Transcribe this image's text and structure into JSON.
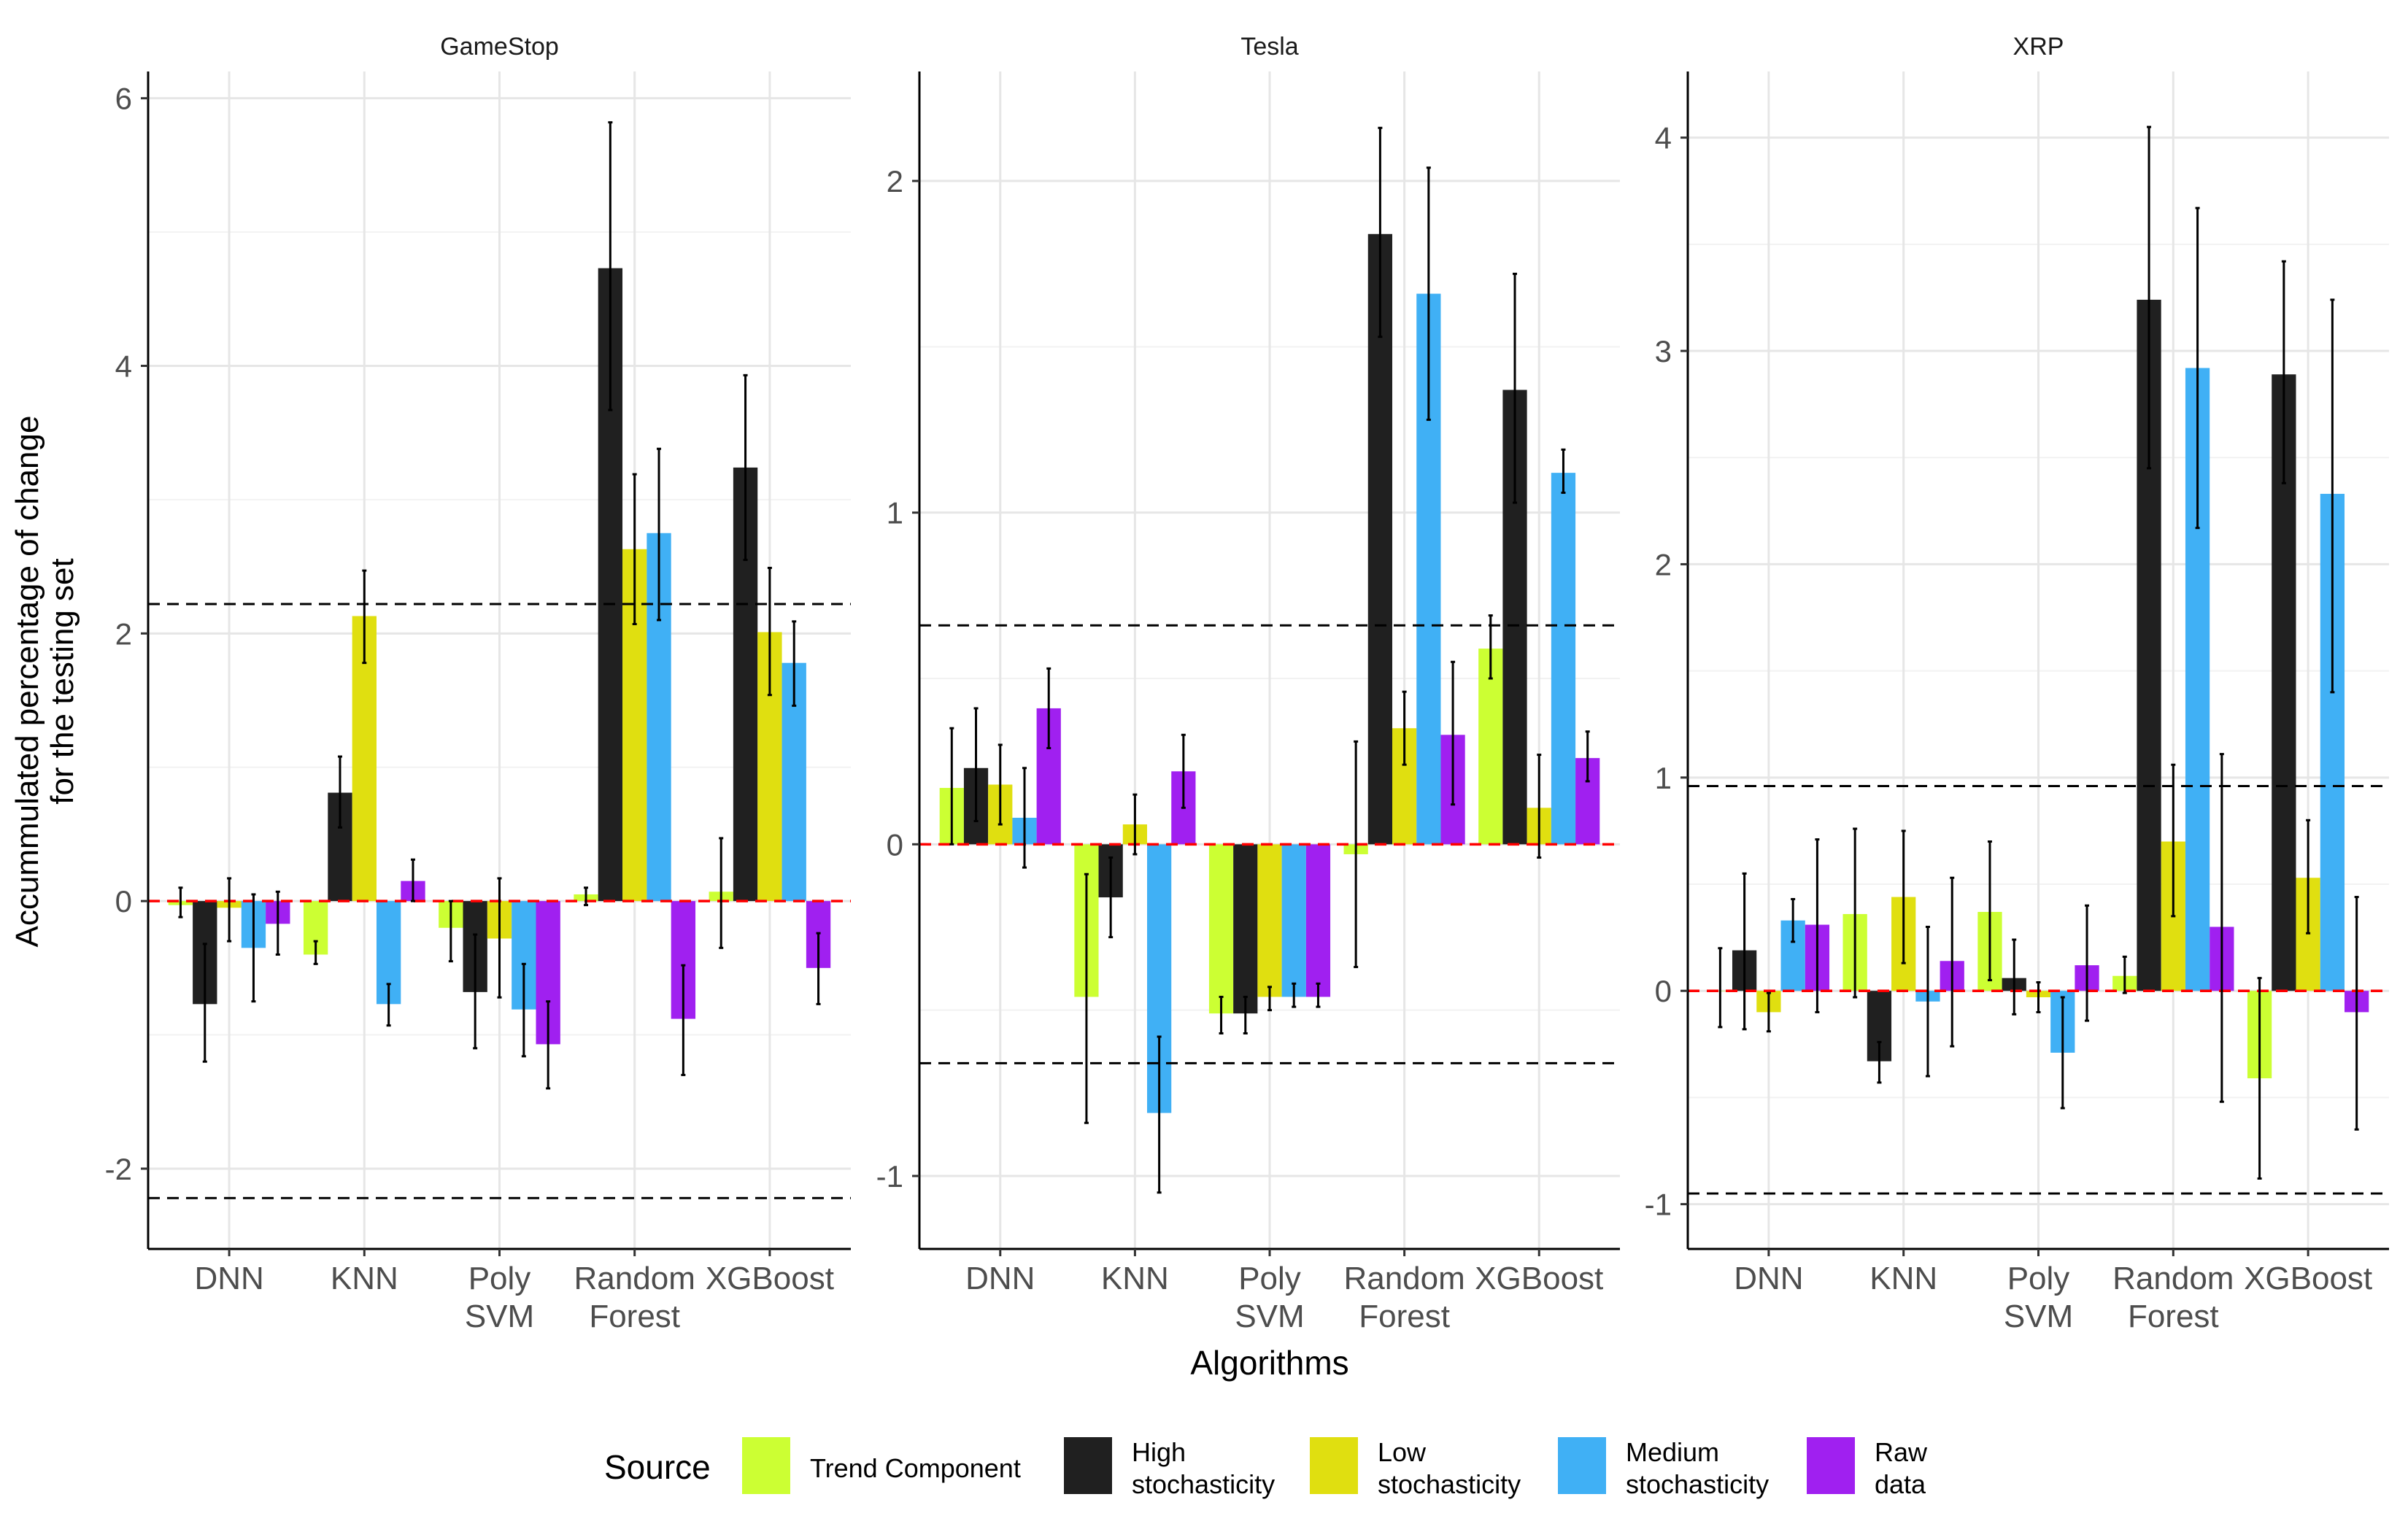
{
  "ylabel_lines": [
    "Accummulated percentage of change",
    "for the testing set"
  ],
  "xlabel": "Algorithms",
  "legend": {
    "title": "Source",
    "items": [
      {
        "label": "Trend Component",
        "lines": [
          "Trend Component"
        ],
        "color": "#CCFF33"
      },
      {
        "label": "High stochasticity",
        "lines": [
          "High",
          "stochasticity"
        ],
        "color": "#202020"
      },
      {
        "label": "Low stochasticity",
        "lines": [
          "Low",
          "stochasticity"
        ],
        "color": "#E0DF10"
      },
      {
        "label": "Medium stochasticity",
        "lines": [
          "Medium",
          "stochasticity"
        ],
        "color": "#40B0F5"
      },
      {
        "label": "Raw data",
        "lines": [
          "Raw",
          "data"
        ],
        "color": "#A020F0"
      }
    ]
  },
  "reference_line_color": "#FF0000",
  "threshold_line_color": "#000000",
  "chart_data": [
    {
      "type": "bar",
      "title": "GameStop",
      "categories": [
        [
          "DNN"
        ],
        [
          "KNN"
        ],
        [
          "Poly",
          "SVM"
        ],
        [
          "Random",
          "Forest"
        ],
        [
          "XGBoost"
        ]
      ],
      "ylim": [
        -2.6,
        6.2
      ],
      "yticks": [
        -2,
        0,
        2,
        4,
        6
      ],
      "tick_labels": [
        "-2",
        "0",
        "2",
        "4",
        "6"
      ],
      "thresholds": [
        2.22,
        -2.22
      ],
      "series": [
        {
          "name": "Trend Component",
          "values": [
            -0.03,
            -0.4,
            -0.2,
            0.05,
            0.07
          ],
          "lower": [
            -0.12,
            -0.47,
            -0.45,
            -0.03,
            -0.35
          ],
          "upper": [
            0.1,
            -0.3,
            0.0,
            0.1,
            0.47
          ]
        },
        {
          "name": "High stochasticity",
          "values": [
            -0.77,
            0.81,
            -0.68,
            4.73,
            3.24
          ],
          "lower": [
            -1.2,
            0.55,
            -1.1,
            3.67,
            2.55
          ],
          "upper": [
            -0.32,
            1.08,
            -0.25,
            5.82,
            3.93
          ]
        },
        {
          "name": "Low stochasticity",
          "values": [
            -0.05,
            2.13,
            -0.28,
            2.63,
            2.01
          ],
          "lower": [
            -0.3,
            1.78,
            -0.72,
            2.07,
            1.54
          ],
          "upper": [
            0.17,
            2.47,
            0.17,
            3.19,
            2.49
          ]
        },
        {
          "name": "Medium stochasticity",
          "values": [
            -0.35,
            -0.77,
            -0.81,
            2.75,
            1.78
          ],
          "lower": [
            -0.75,
            -0.93,
            -1.16,
            2.1,
            1.46
          ],
          "upper": [
            0.05,
            -0.62,
            -0.47,
            3.38,
            2.09
          ]
        },
        {
          "name": "Raw data",
          "values": [
            -0.17,
            0.15,
            -1.07,
            -0.88,
            -0.5
          ],
          "lower": [
            -0.4,
            0.0,
            -1.4,
            -1.3,
            -0.77
          ],
          "upper": [
            0.07,
            0.31,
            -0.75,
            -0.48,
            -0.24
          ]
        }
      ]
    },
    {
      "type": "bar",
      "title": "Tesla",
      "categories": [
        [
          "DNN"
        ],
        [
          "KNN"
        ],
        [
          "Poly",
          "SVM"
        ],
        [
          "Random",
          "Forest"
        ],
        [
          "XGBoost"
        ]
      ],
      "ylim": [
        -1.22,
        2.33
      ],
      "yticks": [
        -1,
        0,
        1,
        2
      ],
      "tick_labels": [
        "-1",
        "0",
        "1",
        "2"
      ],
      "thresholds": [
        0.66,
        -0.66
      ],
      "series": [
        {
          "name": "Trend Component",
          "values": [
            0.17,
            -0.46,
            -0.51,
            -0.03,
            0.59
          ],
          "lower": [
            0.0,
            -0.84,
            -0.57,
            -0.37,
            0.5
          ],
          "upper": [
            0.35,
            -0.09,
            -0.46,
            0.31,
            0.69
          ]
        },
        {
          "name": "High stochasticity",
          "values": [
            0.23,
            -0.16,
            -0.51,
            1.84,
            1.37
          ],
          "lower": [
            0.07,
            -0.28,
            -0.57,
            1.53,
            1.03
          ],
          "upper": [
            0.41,
            -0.04,
            -0.46,
            2.16,
            1.72
          ]
        },
        {
          "name": "Low stochasticity",
          "values": [
            0.18,
            0.06,
            -0.46,
            0.35,
            0.11
          ],
          "lower": [
            0.06,
            -0.03,
            -0.5,
            0.24,
            -0.04
          ],
          "upper": [
            0.3,
            0.15,
            -0.43,
            0.46,
            0.27
          ]
        },
        {
          "name": "Medium stochasticity",
          "values": [
            0.08,
            -0.81,
            -0.46,
            1.66,
            1.12
          ],
          "lower": [
            -0.07,
            -1.05,
            -0.49,
            1.28,
            1.06
          ],
          "upper": [
            0.23,
            -0.58,
            -0.42,
            2.04,
            1.19
          ]
        },
        {
          "name": "Raw data",
          "values": [
            0.41,
            0.22,
            -0.46,
            0.33,
            0.26
          ],
          "lower": [
            0.29,
            0.11,
            -0.49,
            0.12,
            0.19
          ],
          "upper": [
            0.53,
            0.33,
            -0.42,
            0.55,
            0.34
          ]
        }
      ]
    },
    {
      "type": "bar",
      "title": "XRP",
      "categories": [
        [
          "DNN"
        ],
        [
          "KNN"
        ],
        [
          "Poly",
          "SVM"
        ],
        [
          "Random",
          "Forest"
        ],
        [
          "XGBoost"
        ]
      ],
      "ylim": [
        -1.21,
        4.31
      ],
      "yticks": [
        -1,
        0,
        1,
        2,
        3,
        4
      ],
      "tick_labels": [
        "-1",
        "0",
        "1",
        "2",
        "3",
        "4"
      ],
      "thresholds": [
        0.96,
        -0.95
      ],
      "series": [
        {
          "name": "Trend Component",
          "values": [
            0.0,
            0.36,
            0.37,
            0.07,
            -0.41
          ],
          "lower": [
            -0.17,
            -0.03,
            0.05,
            -0.01,
            -0.88
          ],
          "upper": [
            0.2,
            0.76,
            0.7,
            0.16,
            0.06
          ]
        },
        {
          "name": "High stochasticity",
          "values": [
            0.19,
            -0.33,
            0.06,
            3.24,
            2.89
          ],
          "lower": [
            -0.18,
            -0.43,
            -0.11,
            2.45,
            2.38
          ],
          "upper": [
            0.55,
            -0.24,
            0.24,
            4.05,
            3.42
          ]
        },
        {
          "name": "Low stochasticity",
          "values": [
            -0.1,
            0.44,
            -0.03,
            0.7,
            0.53
          ],
          "lower": [
            -0.19,
            0.13,
            -0.1,
            0.35,
            0.27
          ],
          "upper": [
            -0.01,
            0.75,
            0.04,
            1.06,
            0.8
          ]
        },
        {
          "name": "Medium stochasticity",
          "values": [
            0.33,
            -0.05,
            -0.29,
            2.92,
            2.33
          ],
          "lower": [
            0.23,
            -0.4,
            -0.55,
            2.17,
            1.4
          ],
          "upper": [
            0.43,
            0.3,
            -0.03,
            3.67,
            3.24
          ]
        },
        {
          "name": "Raw data",
          "values": [
            0.31,
            0.14,
            0.12,
            0.3,
            -0.1
          ],
          "lower": [
            -0.1,
            -0.26,
            -0.14,
            -0.52,
            -0.65
          ],
          "upper": [
            0.71,
            0.53,
            0.4,
            1.11,
            0.44
          ]
        }
      ]
    }
  ]
}
